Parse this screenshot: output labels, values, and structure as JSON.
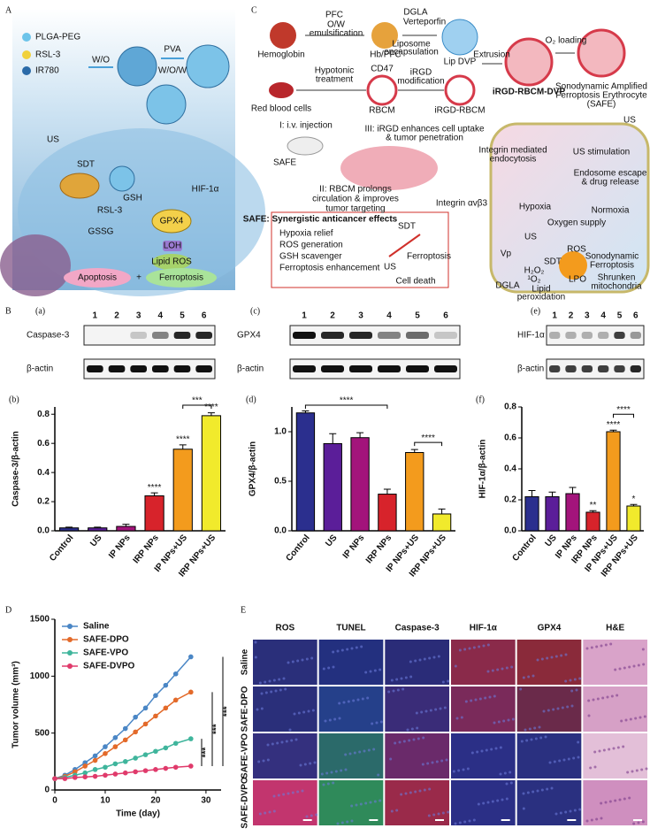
{
  "panel_labels": {
    "A": "A",
    "B": "B",
    "C": "C",
    "D": "D",
    "E": "E"
  },
  "panel_a": {
    "labels": [
      "PLGA-PEG",
      "RSL-3",
      "IR780",
      "W/O",
      "PVA",
      "W/O/W",
      "US",
      "SDT",
      "GSH",
      "RSL-3",
      "GSSG",
      "HIF-1α",
      "GPX4",
      "LOH",
      "Lipid ROS",
      "Apoptosis",
      "+",
      "Ferroptosis"
    ]
  },
  "panel_c": {
    "labels": [
      "Hemoglobin",
      "PFC",
      "O/W",
      "emulsification",
      "Hb/PFC",
      "DGLA",
      "Verteporfin",
      "Liposome",
      "encapsulation",
      "Lip DVP",
      "Extrusion",
      "O₂ loading",
      "iRGD-RBCM-DVP",
      "Sonodynamic Amplified",
      "Ferroptosis Erythrocyte",
      "(SAFE)",
      "Red blood cells",
      "Hypotonic",
      "treatment",
      "CD47",
      "RBCM",
      "iRGD",
      "modification",
      "iRGD-RBCM",
      "I: i.v. injection",
      "SAFE",
      "II: RBCM prolongs",
      "circulation & improves",
      "tumor targeting",
      "III: iRGD enhances cell uptake",
      "& tumor penetration",
      "Integrin αvβ3",
      "Integrin mediated",
      "endocytosis",
      "US stimulation",
      "Endosome escape",
      "& drug release",
      "US",
      "Hypoxia",
      "Normoxia",
      "Oxygen supply",
      "Vp",
      "US",
      "SDT",
      "ROS",
      "H₂O₂",
      "¹O₂",
      "DGLA",
      "LPO",
      "Lipid",
      "peroxidation",
      "Sonodynamic",
      "Ferroptosis",
      "Shrunken",
      "mitochondria",
      "SAFE: Synergistic anticancer effects",
      "Hypoxia relief",
      "ROS generation",
      "GSH scavenger",
      "Ferroptosis enhancement",
      "SDT",
      "US",
      "Ferroptosis",
      "Cell death"
    ]
  },
  "blots": [
    {
      "label": "(a)",
      "lanes": [
        "1",
        "2",
        "3",
        "4",
        "5",
        "6"
      ],
      "rows": [
        "Caspase-3",
        "β-actin"
      ]
    },
    {
      "label": "(c)",
      "lanes": [
        "1",
        "2",
        "3",
        "4",
        "5",
        "6"
      ],
      "rows": [
        "GPX4",
        "β-actin"
      ]
    },
    {
      "label": "(e)",
      "lanes": [
        "1",
        "2",
        "3",
        "4",
        "5",
        "6"
      ],
      "rows": [
        "HIF-1α",
        "β-actin"
      ]
    }
  ],
  "chart_data": [
    {
      "type": "bar",
      "label": "(b)",
      "ylabel": "Caspase-3/β-actin",
      "categories": [
        "Control",
        "US",
        "IP NPs",
        "IRP NPs",
        "IP NPs+US",
        "IRP NPs+US"
      ],
      "values": [
        0.02,
        0.02,
        0.03,
        0.24,
        0.56,
        0.79
      ],
      "errors": [
        0.005,
        0.005,
        0.015,
        0.02,
        0.03,
        0.02
      ],
      "colors": [
        "#2b2f8e",
        "#5b1e99",
        "#a3147b",
        "#d7232b",
        "#f39b1d",
        "#f1ea2c"
      ],
      "ylim": [
        0,
        0.85
      ],
      "yticks": [
        {
          "value": 0,
          "label": "0.0"
        },
        0.2,
        0.4,
        0.6,
        0.8
      ],
      "significance": [
        null,
        null,
        null,
        "****",
        "****",
        "****"
      ],
      "brackets": [
        {
          "from": "IP NPs+US",
          "to": "IRP NPs+US",
          "label": "***"
        }
      ]
    },
    {
      "type": "bar",
      "label": "(d)",
      "ylabel": "GPX4/β-actin",
      "categories": [
        "Control",
        "US",
        "IP NPs",
        "IRP NPs",
        "IP NPs+US",
        "IRP NPs+US"
      ],
      "values": [
        1.19,
        0.88,
        0.94,
        0.37,
        0.79,
        0.17
      ],
      "errors": [
        0.02,
        0.1,
        0.05,
        0.05,
        0.03,
        0.05
      ],
      "colors": [
        "#2b2f8e",
        "#5b1e99",
        "#a3147b",
        "#d7232b",
        "#f39b1d",
        "#f1ea2c"
      ],
      "ylim": [
        0,
        1.25
      ],
      "yticks": [
        {
          "value": 0,
          "label": "0.0"
        },
        0.5,
        {
          "value": 1,
          "label": "1.0"
        }
      ],
      "significance": [
        null,
        null,
        null,
        null,
        null,
        null
      ],
      "brackets": [
        {
          "from": "Control",
          "to": "IRP NPs",
          "label": "****"
        },
        {
          "from": "IP NPs+US",
          "to": "IRP NPs+US",
          "label": "****"
        }
      ]
    },
    {
      "type": "bar",
      "label": "(f)",
      "ylabel": "HIF-1α/β-actin",
      "categories": [
        "Control",
        "US",
        "IP NPs",
        "IRP NPs",
        "IP NPs+US",
        "IRP NPs+US"
      ],
      "values": [
        0.22,
        0.22,
        0.24,
        0.12,
        0.64,
        0.16
      ],
      "errors": [
        0.04,
        0.03,
        0.04,
        0.01,
        0.01,
        0.01
      ],
      "colors": [
        "#2b2f8e",
        "#5b1e99",
        "#a3147b",
        "#d7232b",
        "#f39b1d",
        "#f1ea2c"
      ],
      "ylim": [
        0,
        0.8
      ],
      "yticks": [
        {
          "value": 0,
          "label": "0.0"
        },
        0.2,
        0.4,
        0.6,
        0.8
      ],
      "significance": [
        null,
        null,
        null,
        "**",
        "****",
        "*"
      ],
      "brackets": [
        {
          "from": "IP NPs+US",
          "to": "IRP NPs+US",
          "label": "****"
        }
      ]
    },
    {
      "type": "line",
      "xlabel": "Time (day)",
      "ylabel": "Tumor volume (mm³)",
      "x": [
        0,
        2,
        4,
        6,
        8,
        10,
        12,
        14,
        16,
        18,
        20,
        22,
        24,
        27
      ],
      "series": [
        {
          "name": "Saline",
          "color": "#4a86c5",
          "values": [
            100,
            130,
            180,
            240,
            300,
            380,
            460,
            540,
            640,
            720,
            830,
            920,
            1020,
            1170
          ]
        },
        {
          "name": "SAFE-DPO",
          "color": "#e36a2a",
          "values": [
            100,
            120,
            160,
            210,
            260,
            320,
            380,
            440,
            510,
            580,
            650,
            720,
            790,
            860
          ]
        },
        {
          "name": "SAFE-VPO",
          "color": "#3fb59c",
          "values": [
            100,
            110,
            130,
            150,
            180,
            200,
            230,
            250,
            280,
            310,
            340,
            370,
            410,
            450
          ]
        },
        {
          "name": "SAFE-DVPO",
          "color": "#e03a6b",
          "values": [
            100,
            100,
            110,
            115,
            120,
            130,
            140,
            150,
            160,
            170,
            180,
            190,
            200,
            210
          ]
        }
      ],
      "xlim": [
        0,
        33
      ],
      "xticks": [
        0,
        10,
        20,
        30
      ],
      "ylim": [
        0,
        1500
      ],
      "yticks": [
        0,
        500,
        1000,
        1500
      ],
      "brackets": [
        {
          "from": "SAFE-VPO",
          "to": "SAFE-DVPO",
          "label": "***"
        },
        {
          "from": "SAFE-DPO",
          "to": "SAFE-DVPO",
          "label": "***"
        },
        {
          "from": "Saline",
          "to": "SAFE-DVPO",
          "label": "***"
        }
      ]
    }
  ],
  "panel_e": {
    "columns": [
      "ROS",
      "TUNEL",
      "Caspase-3",
      "HIF-1α",
      "GPX4",
      "H&E"
    ],
    "rows": [
      "Saline",
      "SAFE-DPO",
      "SAFE-VPO",
      "SAFE-DVPO"
    ]
  }
}
